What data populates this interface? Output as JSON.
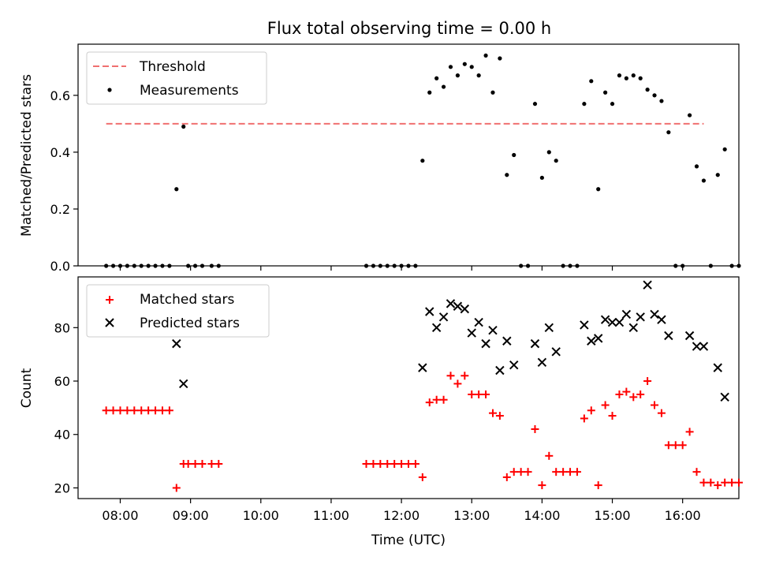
{
  "figure_title": "Flux total observing time = 0.00 h",
  "chart_data": [
    {
      "type": "scatter",
      "title": "Flux total observing time = 0.00 h",
      "xlabel": "",
      "ylabel": "Matched/Predicted stars",
      "ylim": [
        0,
        0.78
      ],
      "xlim": [
        "07:24",
        "16:48"
      ],
      "yticks": [
        "0.0",
        "0.2",
        "0.4",
        "0.6"
      ],
      "legend_position": "upper left",
      "threshold": {
        "name": "Threshold",
        "value": 0.5,
        "x_range": [
          "07:48",
          "16:18"
        ],
        "color": "#f07070",
        "style": "dashed"
      },
      "series": [
        {
          "name": "Measurements",
          "marker": "dot",
          "color": "#000000",
          "points": [
            [
              "07:48",
              0.0
            ],
            [
              "07:54",
              0.0
            ],
            [
              "08:00",
              0.0
            ],
            [
              "08:06",
              0.0
            ],
            [
              "08:12",
              0.0
            ],
            [
              "08:18",
              0.0
            ],
            [
              "08:24",
              0.0
            ],
            [
              "08:30",
              0.0
            ],
            [
              "08:36",
              0.0
            ],
            [
              "08:42",
              0.0
            ],
            [
              "08:48",
              0.27
            ],
            [
              "08:54",
              0.49
            ],
            [
              "08:58",
              0.0
            ],
            [
              "09:04",
              0.0
            ],
            [
              "09:10",
              0.0
            ],
            [
              "09:18",
              0.0
            ],
            [
              "09:24",
              0.0
            ],
            [
              "11:30",
              0.0
            ],
            [
              "11:36",
              0.0
            ],
            [
              "11:42",
              0.0
            ],
            [
              "11:48",
              0.0
            ],
            [
              "11:54",
              0.0
            ],
            [
              "12:00",
              0.0
            ],
            [
              "12:06",
              0.0
            ],
            [
              "12:12",
              0.0
            ],
            [
              "12:18",
              0.37
            ],
            [
              "12:24",
              0.61
            ],
            [
              "12:30",
              0.66
            ],
            [
              "12:36",
              0.63
            ],
            [
              "12:42",
              0.7
            ],
            [
              "12:48",
              0.67
            ],
            [
              "12:54",
              0.71
            ],
            [
              "13:00",
              0.7
            ],
            [
              "13:06",
              0.67
            ],
            [
              "13:12",
              0.74
            ],
            [
              "13:18",
              0.61
            ],
            [
              "13:24",
              0.73
            ],
            [
              "13:30",
              0.32
            ],
            [
              "13:36",
              0.39
            ],
            [
              "13:42",
              0.0
            ],
            [
              "13:48",
              0.0
            ],
            [
              "13:54",
              0.57
            ],
            [
              "14:00",
              0.31
            ],
            [
              "14:06",
              0.4
            ],
            [
              "14:12",
              0.37
            ],
            [
              "14:18",
              0.0
            ],
            [
              "14:24",
              0.0
            ],
            [
              "14:30",
              0.0
            ],
            [
              "14:36",
              0.57
            ],
            [
              "14:42",
              0.65
            ],
            [
              "14:48",
              0.27
            ],
            [
              "14:54",
              0.61
            ],
            [
              "15:00",
              0.57
            ],
            [
              "15:06",
              0.67
            ],
            [
              "15:12",
              0.66
            ],
            [
              "15:18",
              0.67
            ],
            [
              "15:24",
              0.66
            ],
            [
              "15:30",
              0.62
            ],
            [
              "15:36",
              0.6
            ],
            [
              "15:42",
              0.58
            ],
            [
              "15:48",
              0.47
            ],
            [
              "15:54",
              0.0
            ],
            [
              "16:00",
              0.0
            ],
            [
              "16:06",
              0.53
            ],
            [
              "16:12",
              0.35
            ],
            [
              "16:18",
              0.3
            ],
            [
              "16:24",
              0.0
            ],
            [
              "16:30",
              0.32
            ],
            [
              "16:36",
              0.41
            ],
            [
              "16:42",
              0.0
            ],
            [
              "16:48",
              0.0
            ]
          ]
        }
      ]
    },
    {
      "type": "scatter",
      "title": "",
      "xlabel": "Time (UTC)",
      "ylabel": "Count",
      "ylim": [
        16,
        99
      ],
      "xlim": [
        "07:24",
        "16:48"
      ],
      "yticks": [
        "20",
        "40",
        "60",
        "80"
      ],
      "xticks": [
        "08:00",
        "09:00",
        "10:00",
        "11:00",
        "12:00",
        "13:00",
        "14:00",
        "15:00",
        "16:00"
      ],
      "legend_position": "upper left",
      "series": [
        {
          "name": "Matched stars",
          "marker": "plus",
          "color": "#ff0000",
          "points": [
            [
              "07:48",
              49
            ],
            [
              "07:54",
              49
            ],
            [
              "08:00",
              49
            ],
            [
              "08:06",
              49
            ],
            [
              "08:12",
              49
            ],
            [
              "08:18",
              49
            ],
            [
              "08:24",
              49
            ],
            [
              "08:30",
              49
            ],
            [
              "08:36",
              49
            ],
            [
              "08:42",
              49
            ],
            [
              "08:48",
              20
            ],
            [
              "08:54",
              29
            ],
            [
              "08:58",
              29
            ],
            [
              "09:04",
              29
            ],
            [
              "09:10",
              29
            ],
            [
              "09:18",
              29
            ],
            [
              "09:24",
              29
            ],
            [
              "11:30",
              29
            ],
            [
              "11:36",
              29
            ],
            [
              "11:42",
              29
            ],
            [
              "11:48",
              29
            ],
            [
              "11:54",
              29
            ],
            [
              "12:00",
              29
            ],
            [
              "12:06",
              29
            ],
            [
              "12:12",
              29
            ],
            [
              "12:18",
              24
            ],
            [
              "12:24",
              52
            ],
            [
              "12:30",
              53
            ],
            [
              "12:36",
              53
            ],
            [
              "12:42",
              62
            ],
            [
              "12:48",
              59
            ],
            [
              "12:54",
              62
            ],
            [
              "13:00",
              55
            ],
            [
              "13:06",
              55
            ],
            [
              "13:12",
              55
            ],
            [
              "13:18",
              48
            ],
            [
              "13:24",
              47
            ],
            [
              "13:30",
              24
            ],
            [
              "13:36",
              26
            ],
            [
              "13:42",
              26
            ],
            [
              "13:48",
              26
            ],
            [
              "13:54",
              42
            ],
            [
              "14:00",
              21
            ],
            [
              "14:06",
              32
            ],
            [
              "14:12",
              26
            ],
            [
              "14:18",
              26
            ],
            [
              "14:24",
              26
            ],
            [
              "14:30",
              26
            ],
            [
              "14:36",
              46
            ],
            [
              "14:42",
              49
            ],
            [
              "14:48",
              21
            ],
            [
              "14:54",
              51
            ],
            [
              "15:00",
              47
            ],
            [
              "15:06",
              55
            ],
            [
              "15:12",
              56
            ],
            [
              "15:18",
              54
            ],
            [
              "15:24",
              55
            ],
            [
              "15:30",
              60
            ],
            [
              "15:36",
              51
            ],
            [
              "15:42",
              48
            ],
            [
              "15:48",
              36
            ],
            [
              "15:54",
              36
            ],
            [
              "16:00",
              36
            ],
            [
              "16:06",
              41
            ],
            [
              "16:12",
              26
            ],
            [
              "16:18",
              22
            ],
            [
              "16:24",
              22
            ],
            [
              "16:30",
              21
            ],
            [
              "16:36",
              22
            ],
            [
              "16:42",
              22
            ],
            [
              "16:48",
              22
            ]
          ]
        },
        {
          "name": "Predicted stars",
          "marker": "x",
          "color": "#000000",
          "points": [
            [
              "08:48",
              74
            ],
            [
              "08:54",
              59
            ],
            [
              "12:18",
              65
            ],
            [
              "12:24",
              86
            ],
            [
              "12:30",
              80
            ],
            [
              "12:36",
              84
            ],
            [
              "12:42",
              89
            ],
            [
              "12:48",
              88
            ],
            [
              "12:54",
              87
            ],
            [
              "13:00",
              78
            ],
            [
              "13:06",
              82
            ],
            [
              "13:12",
              74
            ],
            [
              "13:18",
              79
            ],
            [
              "13:24",
              64
            ],
            [
              "13:30",
              75
            ],
            [
              "13:36",
              66
            ],
            [
              "13:54",
              74
            ],
            [
              "14:00",
              67
            ],
            [
              "14:06",
              80
            ],
            [
              "14:12",
              71
            ],
            [
              "14:36",
              81
            ],
            [
              "14:42",
              75
            ],
            [
              "14:48",
              76
            ],
            [
              "14:54",
              83
            ],
            [
              "15:00",
              82
            ],
            [
              "15:06",
              82
            ],
            [
              "15:12",
              85
            ],
            [
              "15:18",
              80
            ],
            [
              "15:24",
              84
            ],
            [
              "15:30",
              96
            ],
            [
              "15:36",
              85
            ],
            [
              "15:42",
              83
            ],
            [
              "15:48",
              77
            ],
            [
              "16:06",
              77
            ],
            [
              "16:12",
              73
            ],
            [
              "16:18",
              73
            ],
            [
              "16:30",
              65
            ],
            [
              "16:36",
              54
            ]
          ]
        }
      ]
    }
  ]
}
